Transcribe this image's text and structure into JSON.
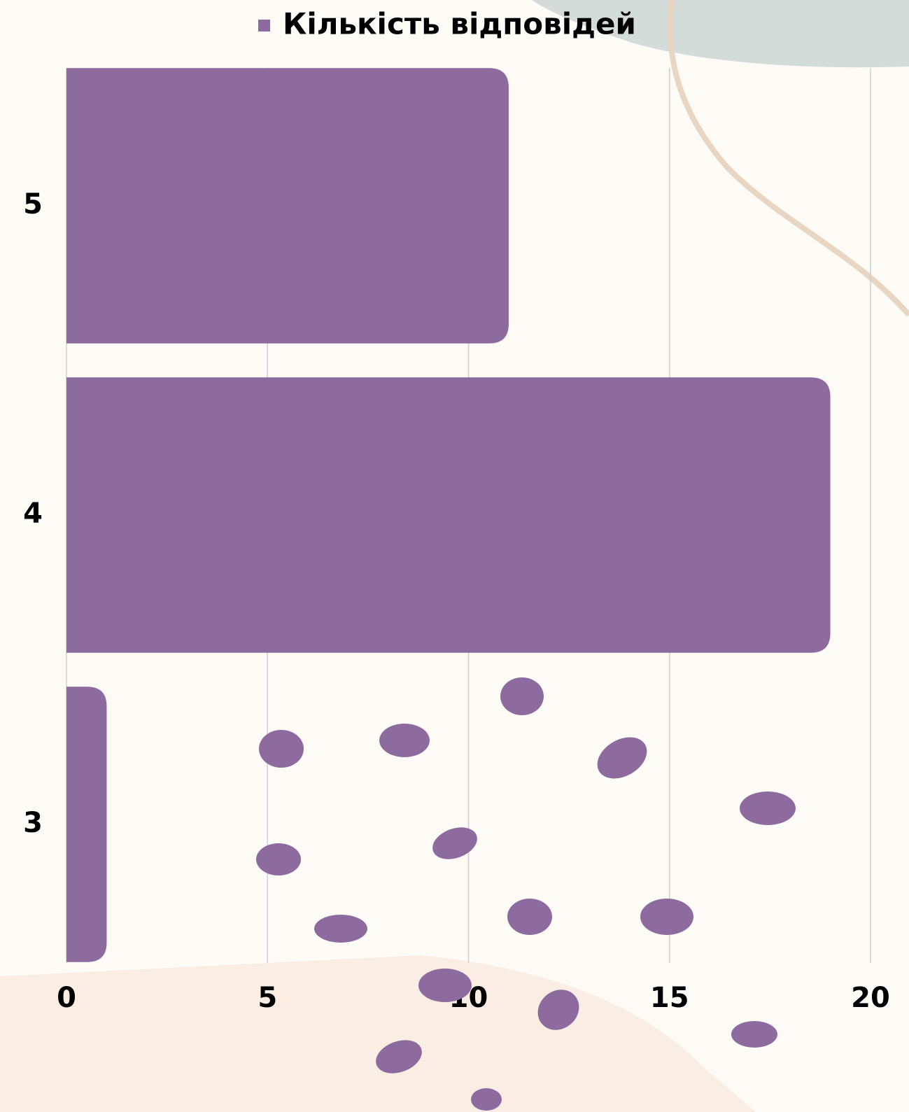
{
  "chart_data": {
    "type": "barh",
    "categories": [
      "5",
      "4",
      "3"
    ],
    "series": [
      {
        "name": "Кількість відповідей",
        "color": "#8e6b9e",
        "values": [
          11,
          19,
          1
        ]
      }
    ],
    "xlim": [
      0,
      20
    ],
    "xticks": [
      0,
      5,
      10,
      15,
      20
    ],
    "grid": true,
    "legend": "top"
  }
}
